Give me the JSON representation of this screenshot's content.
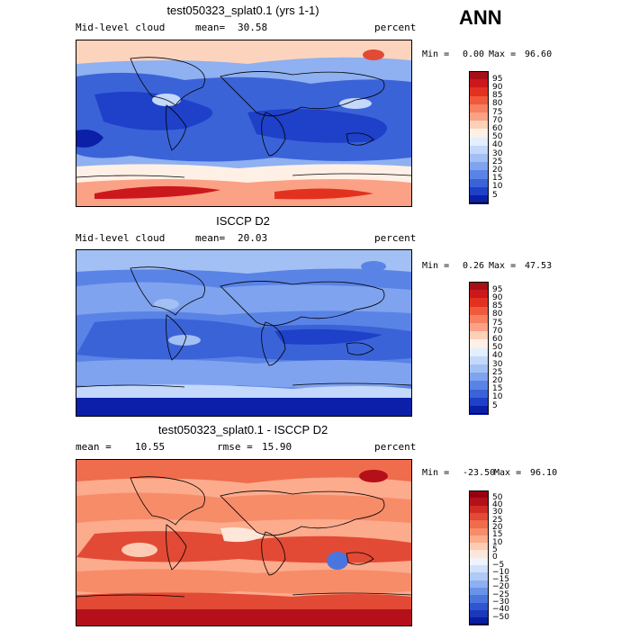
{
  "season": "ANN",
  "chart_data": [
    {
      "type": "heatmap",
      "title": "test050323_splat0.1 (yrs 1-1)",
      "variable": "Mid-level cloud",
      "mean_label": "mean=",
      "mean": "30.58",
      "units": "percent",
      "min_label": "Min =",
      "min": "0.00",
      "max_label": "Max =",
      "max": "96.60",
      "levels": [
        "95",
        "90",
        "85",
        "80",
        "75",
        "70",
        "60",
        "50",
        "40",
        "30",
        "25",
        "20",
        "15",
        "10",
        "5"
      ],
      "colors": [
        "#a50f15",
        "#cb181d",
        "#e2321f",
        "#ef5a3c",
        "#f6805f",
        "#fba185",
        "#fdd0b8",
        "#fff0e6",
        "#e3eeff",
        "#c3d8fb",
        "#a3c0f5",
        "#7fa3ee",
        "#5a83e6",
        "#3b63d8",
        "#1f40c8",
        "#0b1fa8"
      ],
      "domain": "global map"
    },
    {
      "type": "heatmap",
      "title": "ISCCP D2",
      "variable": "Mid-level cloud",
      "mean_label": "mean=",
      "mean": "20.03",
      "units": "percent",
      "min_label": "Min =",
      "min": "0.26",
      "max_label": "Max =",
      "max": "47.53",
      "levels": [
        "95",
        "90",
        "85",
        "80",
        "75",
        "70",
        "60",
        "50",
        "40",
        "30",
        "25",
        "20",
        "15",
        "10",
        "5"
      ],
      "colors": [
        "#a50f15",
        "#cb181d",
        "#e2321f",
        "#ef5a3c",
        "#f6805f",
        "#fba185",
        "#fdd0b8",
        "#fff0e6",
        "#e3eeff",
        "#c3d8fb",
        "#a3c0f5",
        "#7fa3ee",
        "#5a83e6",
        "#3b63d8",
        "#1f40c8",
        "#0b1fa8"
      ],
      "domain": "global map"
    },
    {
      "type": "heatmap",
      "title": "test050323_splat0.1 - ISCCP D2",
      "mean_label": "mean =",
      "mean": "10.55",
      "rmse_label": "rmse =",
      "rmse": "15.90",
      "units": "percent",
      "min_label": "Min =",
      "min": "-23.50",
      "max_label": "Max =",
      "max": "96.10",
      "levels": [
        "50",
        "40",
        "30",
        "25",
        "20",
        "15",
        "10",
        "5",
        "0",
        "−5",
        "−10",
        "−15",
        "−20",
        "−25",
        "−30",
        "−40",
        "−50"
      ],
      "colors": [
        "#99000d",
        "#b5101a",
        "#d02c25",
        "#e24a35",
        "#ef6c4d",
        "#f78c69",
        "#fcab8d",
        "#fdcbb3",
        "#fee6d9",
        "#eef3ff",
        "#d2e0fb",
        "#b0c9f6",
        "#8db0f0",
        "#6a93e8",
        "#4b75de",
        "#2f55cf",
        "#1a38bd",
        "#0a1d9e"
      ],
      "domain": "global map"
    }
  ]
}
